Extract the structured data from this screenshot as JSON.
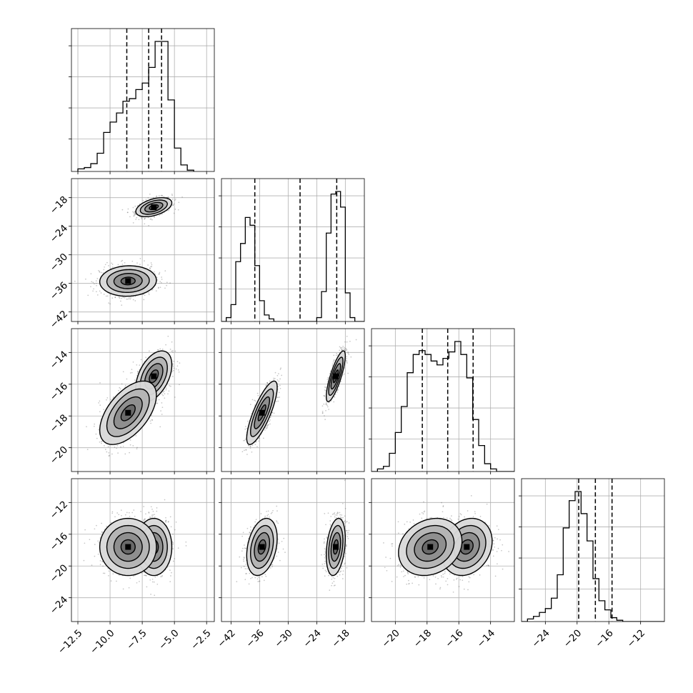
{
  "chart_data": {
    "type": "corner",
    "parameters": [
      {
        "range": [
          -13.0,
          -1.9
        ],
        "ticks": [
          "−12.5",
          "−10.0",
          "−7.5",
          "−5.0",
          "−2.5"
        ],
        "tick_values": [
          -12.5,
          -10.0,
          -7.5,
          -5.0,
          -2.5
        ],
        "quantiles": [
          -8.7,
          -7.0,
          -6.0
        ],
        "modes": [
          {
            "mu": -7.4,
            "sd": 1.15,
            "w": 1.0
          }
        ],
        "hist": {
          "bin_edges_start": -12.5,
          "bin_width": 0.5,
          "counts": [
            0.02,
            0.03,
            0.06,
            0.14,
            0.3,
            0.38,
            0.45,
            0.54,
            0.56,
            0.63,
            0.68,
            0.8,
            1.0,
            1.0,
            0.55,
            0.18,
            0.05,
            0.01
          ]
        }
      },
      {
        "range": [
          -44.0,
          -14.0
        ],
        "ticks": [
          "−42",
          "−36",
          "−30",
          "−24",
          "−18"
        ],
        "tick_values": [
          -42,
          -36,
          -30,
          -24,
          -18
        ],
        "quantiles": [
          -37.0,
          -27.5,
          -19.8
        ],
        "modes": [
          {
            "mu": -35.5,
            "sd": 1.6,
            "w": 0.5
          },
          {
            "mu": -20.0,
            "sd": 1.0,
            "w": 0.5
          }
        ],
        "hist": {
          "bin_edges_start": -44.0,
          "bin_width": 1.0,
          "counts": [
            0.0,
            0.03,
            0.13,
            0.46,
            0.6,
            0.8,
            0.74,
            0.43,
            0.16,
            0.05,
            0.02,
            0.0,
            0.0,
            0.0,
            0.0,
            0.0,
            0.0,
            0.0,
            0.0,
            0.0,
            0.03,
            0.23,
            0.68,
            0.98,
            1.0,
            0.88,
            0.22,
            0.03,
            0.0,
            0.0
          ]
        }
      },
      {
        "range": [
          -21.5,
          -12.5
        ],
        "ticks": [
          "−20",
          "−18",
          "−16",
          "−14"
        ],
        "tick_values": [
          -20,
          -18,
          -16,
          -14
        ],
        "quantiles": [
          -18.3,
          -16.7,
          -15.1
        ],
        "modes": [
          {
            "mu": -17.8,
            "sd": 1.0,
            "w": 0.5
          },
          {
            "mu": -15.5,
            "sd": 0.8,
            "w": 0.5
          }
        ],
        "hist": {
          "bin_edges_start": -21.5,
          "bin_width": 0.375,
          "counts": [
            0.0,
            0.02,
            0.04,
            0.14,
            0.3,
            0.5,
            0.76,
            0.9,
            0.93,
            0.9,
            0.85,
            0.82,
            0.87,
            0.92,
            1.0,
            0.9,
            0.72,
            0.4,
            0.2,
            0.06,
            0.02,
            0.0,
            0.0,
            0.0
          ]
        }
      },
      {
        "range": [
          -27.0,
          -9.0
        ],
        "ticks": [
          "−24",
          "−20",
          "−16",
          "−12"
        ],
        "tick_values": [
          -24,
          -20,
          -16,
          -12
        ],
        "quantiles": [
          -19.8,
          -17.7,
          -15.6
        ],
        "modes": [
          {
            "mu": -17.6,
            "sd": 1.8,
            "w": 1.0
          }
        ],
        "hist": {
          "bin_edges_start": -27.0,
          "bin_width": 0.75,
          "counts": [
            0.0,
            0.02,
            0.04,
            0.07,
            0.1,
            0.18,
            0.36,
            0.72,
            0.93,
            1.0,
            0.83,
            0.62,
            0.33,
            0.16,
            0.09,
            0.03,
            0.01,
            0.0,
            0.0,
            0.0,
            0.0,
            0.0,
            0.0,
            0.0
          ]
        }
      }
    ],
    "pair_plots": [
      {
        "row": 1,
        "col": 0,
        "clusters": [
          {
            "mx": -6.6,
            "my": -20.0,
            "sx": 0.7,
            "sy": 1.0,
            "rho": 0.45,
            "w": 0.5
          },
          {
            "mx": -8.6,
            "my": -35.5,
            "sx": 1.1,
            "sy": 1.6,
            "rho": 0.05,
            "w": 0.5
          }
        ]
      },
      {
        "row": 2,
        "col": 0,
        "clusters": [
          {
            "mx": -6.6,
            "my": -15.5,
            "sx": 0.7,
            "sy": 0.8,
            "rho": 0.45,
            "w": 0.5
          },
          {
            "mx": -8.6,
            "my": -17.8,
            "sx": 1.1,
            "sy": 1.0,
            "rho": 0.55,
            "w": 0.5
          }
        ]
      },
      {
        "row": 2,
        "col": 1,
        "clusters": [
          {
            "mx": -20.0,
            "my": -15.5,
            "sx": 1.0,
            "sy": 0.8,
            "rho": 0.8,
            "w": 0.5
          },
          {
            "mx": -35.5,
            "my": -17.8,
            "sx": 1.6,
            "sy": 1.0,
            "rho": 0.8,
            "w": 0.5
          }
        ]
      },
      {
        "row": 3,
        "col": 0,
        "clusters": [
          {
            "mx": -6.6,
            "my": -17.6,
            "sx": 0.7,
            "sy": 1.8,
            "rho": 0.0,
            "w": 0.5
          },
          {
            "mx": -8.6,
            "my": -17.6,
            "sx": 1.1,
            "sy": 1.8,
            "rho": 0.0,
            "w": 0.5
          }
        ]
      },
      {
        "row": 3,
        "col": 1,
        "clusters": [
          {
            "mx": -20.0,
            "my": -17.6,
            "sx": 1.0,
            "sy": 1.8,
            "rho": 0.3,
            "w": 0.5
          },
          {
            "mx": -35.5,
            "my": -17.6,
            "sx": 1.6,
            "sy": 1.8,
            "rho": 0.3,
            "w": 0.5
          }
        ]
      },
      {
        "row": 3,
        "col": 2,
        "clusters": [
          {
            "mx": -15.5,
            "my": -17.6,
            "sx": 0.8,
            "sy": 1.8,
            "rho": 0.2,
            "w": 0.5
          },
          {
            "mx": -17.8,
            "my": -17.6,
            "sx": 1.0,
            "sy": 1.8,
            "rho": 0.2,
            "w": 0.5
          }
        ]
      }
    ],
    "contour_levels_sigma": [
      0.5,
      1.0,
      1.5,
      2.0
    ],
    "grid": true,
    "colors": {
      "scatter": "#5a5a5a",
      "lines": "#000000",
      "grid": "#b0b0b0"
    }
  }
}
